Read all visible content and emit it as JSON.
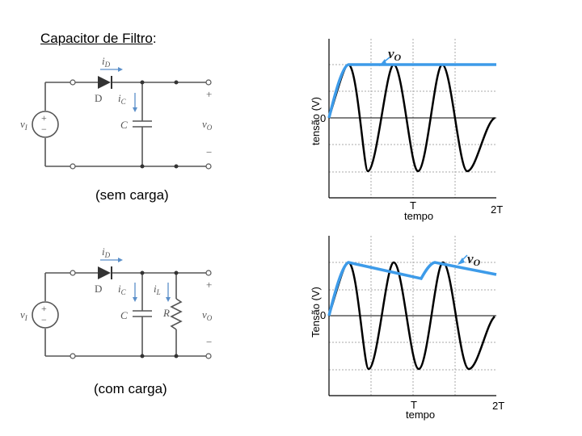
{
  "title": {
    "label": "Capacitor de Filtro",
    "colon": ":"
  },
  "top": {
    "caption": "(sem carga)",
    "ylabel": "tensão (V)",
    "zero": "0",
    "tick_T": "T",
    "tick_2T": "2T",
    "xlabel": "tempo",
    "vo_label": "v",
    "vo_sub": "O",
    "circuit": {
      "iD": "i",
      "iD_sub": "D",
      "D": "D",
      "iC": "i",
      "iC_sub": "C",
      "C": "C",
      "vI": "v",
      "vI_sub": "I",
      "vO": "v",
      "vO_sub": "O",
      "plus": "+",
      "minus": "−"
    }
  },
  "bottom": {
    "caption": "(com carga)",
    "ylabel": "Tensão (V)",
    "zero": "0",
    "tick_T": "T",
    "tick_2T": "2T",
    "xlabel": "tempo",
    "vo_label": "v",
    "vo_sub": "O",
    "circuit": {
      "iD": "i",
      "iD_sub": "D",
      "D": "D",
      "iC": "i",
      "iC_sub": "C",
      "iL": "i",
      "iL_sub": "L",
      "C": "C",
      "R": "R",
      "vI": "v",
      "vI_sub": "I",
      "vO": "v",
      "vO_sub": "O",
      "plus": "+",
      "minus": "−"
    }
  },
  "colors": {
    "input_wave": "#000000",
    "output_wave": "#3d9be9",
    "circuit": "#555555",
    "arrow": "#5b8fc9"
  }
}
